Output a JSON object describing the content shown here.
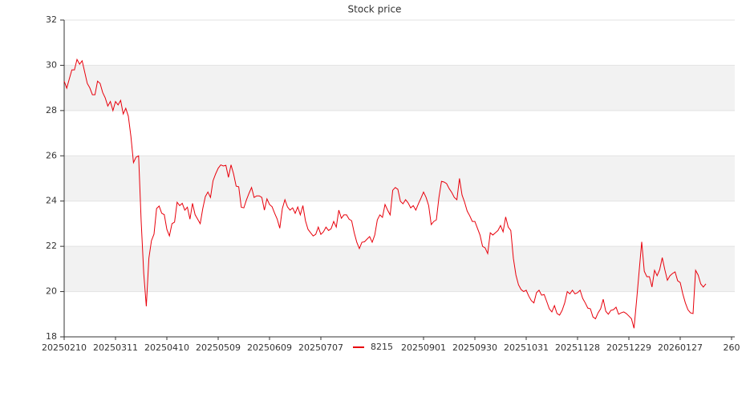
{
  "chart_data": {
    "type": "line",
    "title": "Stock price",
    "series": [
      {
        "name": "8215",
        "color": "#e8000b",
        "values": [
          29.3,
          28.99,
          29.4,
          29.8,
          29.8,
          30.26,
          30.05,
          30.2,
          29.7,
          29.2,
          29.0,
          28.7,
          28.7,
          29.3,
          29.2,
          28.8,
          28.56,
          28.2,
          28.4,
          28.0,
          28.4,
          28.25,
          28.45,
          27.85,
          28.1,
          27.75,
          26.86,
          25.7,
          25.94,
          26.0,
          23.1,
          20.8,
          19.35,
          21.47,
          22.25,
          22.54,
          23.67,
          23.78,
          23.46,
          23.4,
          22.75,
          22.46,
          23.0,
          23.07,
          23.95,
          23.8,
          23.9,
          23.6,
          23.73,
          23.2,
          23.9,
          23.4,
          23.2,
          23.0,
          23.67,
          24.2,
          24.4,
          24.16,
          24.9,
          25.2,
          25.45,
          25.6,
          25.55,
          25.58,
          25.05,
          25.6,
          25.2,
          24.66,
          24.63,
          23.73,
          23.7,
          24.05,
          24.34,
          24.6,
          24.16,
          24.23,
          24.23,
          24.16,
          23.6,
          24.1,
          23.85,
          23.75,
          23.46,
          23.2,
          22.8,
          23.67,
          24.06,
          23.74,
          23.6,
          23.7,
          23.46,
          23.74,
          23.39,
          23.8,
          23.13,
          22.75,
          22.6,
          22.46,
          22.53,
          22.85,
          22.53,
          22.64,
          22.85,
          22.7,
          22.78,
          23.1,
          22.85,
          23.6,
          23.24,
          23.39,
          23.39,
          23.2,
          23.13,
          22.6,
          22.18,
          21.9,
          22.18,
          22.2,
          22.32,
          22.43,
          22.18,
          22.5,
          23.17,
          23.39,
          23.28,
          23.85,
          23.6,
          23.39,
          24.48,
          24.6,
          24.52,
          23.99,
          23.88,
          24.06,
          23.92,
          23.7,
          23.8,
          23.6,
          23.88,
          24.13,
          24.4,
          24.16,
          23.8,
          22.96,
          23.1,
          23.17,
          24.16,
          24.87,
          24.84,
          24.77,
          24.55,
          24.38,
          24.16,
          24.06,
          25.0,
          24.27,
          23.95,
          23.56,
          23.35,
          23.1,
          23.1,
          22.8,
          22.5,
          22.0,
          21.93,
          21.68,
          22.6,
          22.5,
          22.6,
          22.7,
          22.92,
          22.64,
          23.3,
          22.85,
          22.7,
          21.47,
          20.73,
          20.3,
          20.09,
          20.0,
          20.06,
          19.8,
          19.6,
          19.5,
          19.95,
          20.06,
          19.84,
          19.87,
          19.56,
          19.24,
          19.1,
          19.38,
          19.03,
          18.96,
          19.17,
          19.5,
          20.0,
          19.9,
          20.06,
          19.9,
          19.95,
          20.06,
          19.7,
          19.5,
          19.27,
          19.24,
          18.88,
          18.8,
          19.06,
          19.24,
          19.66,
          19.13,
          19.0,
          19.17,
          19.2,
          19.31,
          19.0,
          19.06,
          19.1,
          19.03,
          18.92,
          18.8,
          18.38,
          19.6,
          20.9,
          22.2,
          20.9,
          20.66,
          20.66,
          20.2,
          20.94,
          20.7,
          20.97,
          21.5,
          20.97,
          20.5,
          20.7,
          20.8,
          20.87,
          20.48,
          20.4,
          19.9,
          19.5,
          19.2,
          19.06,
          19.03,
          20.94,
          20.73,
          20.34,
          20.2,
          20.34
        ]
      }
    ],
    "xlim": [
      0,
      261.25
    ],
    "xticks": [
      {
        "value": 0,
        "label": "20250210"
      },
      {
        "value": 20,
        "label": "20250311"
      },
      {
        "value": 40,
        "label": "20250410"
      },
      {
        "value": 60,
        "label": "20250509"
      },
      {
        "value": 80,
        "label": "20250609"
      },
      {
        "value": 100,
        "label": "20250707"
      },
      {
        "value": 140,
        "label": "20250901"
      },
      {
        "value": 160,
        "label": "20250930"
      },
      {
        "value": 180,
        "label": "20251031"
      },
      {
        "value": 200,
        "label": "20251128"
      },
      {
        "value": 220,
        "label": "20251229"
      },
      {
        "value": 240,
        "label": "20260127"
      },
      {
        "value": 260,
        "label": "260"
      }
    ],
    "ylim": [
      18,
      32
    ],
    "yticks": [
      18,
      20,
      22,
      24,
      26,
      28,
      30,
      32
    ],
    "grid": true,
    "bands": true,
    "legend": "bottom"
  }
}
